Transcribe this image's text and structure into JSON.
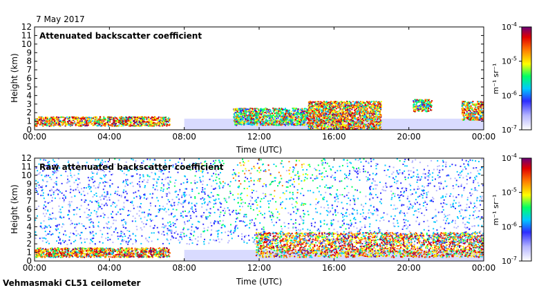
{
  "figure": {
    "date": "7 May 2017",
    "instrument_label": "Vehmasmaki CL51 ceilometer"
  },
  "chart_data": [
    {
      "type": "heatmap",
      "title": "Attenuated backscatter coefficient",
      "xlabel": "Time (UTC)",
      "ylabel": "Height (km)",
      "xlim": [
        0,
        24
      ],
      "ylim": [
        0,
        12
      ],
      "x_ticks": [
        "00:00",
        "04:00",
        "08:00",
        "12:00",
        "16:00",
        "20:00",
        "00:00"
      ],
      "y_ticks": [
        "0",
        "1",
        "2",
        "3",
        "4",
        "5",
        "6",
        "7",
        "8",
        "9",
        "10",
        "11",
        "12"
      ],
      "colorbar": {
        "unit": "m⁻¹ sr⁻¹",
        "scale": "log",
        "range": [
          1e-07,
          0.0001
        ],
        "tick_labels": [
          {
            "base": "10",
            "exp": "-4"
          },
          {
            "base": "10",
            "exp": "-5"
          },
          {
            "base": "10",
            "exp": "-6"
          },
          {
            "base": "10",
            "exp": "-7"
          }
        ]
      },
      "features": [
        {
          "name": "boundary layer aerosol",
          "time": [
            0,
            7.2
          ],
          "height_km": [
            0.5,
            1.6
          ],
          "level": "high"
        },
        {
          "name": "scattered low cloud",
          "time": [
            10.6,
            14.6
          ],
          "height_km": [
            0.6,
            2.6
          ],
          "level": "mid"
        },
        {
          "name": "cloud",
          "time": [
            14.6,
            18.5
          ],
          "height_km": [
            0,
            3.4
          ],
          "level": "high"
        },
        {
          "name": "cloud",
          "time": [
            20.2,
            21.2
          ],
          "height_km": [
            2.2,
            3.6
          ],
          "level": "mid"
        },
        {
          "name": "cloud",
          "time": [
            22.8,
            24
          ],
          "height_km": [
            1.2,
            3.4
          ],
          "level": "high"
        }
      ]
    },
    {
      "type": "heatmap",
      "title": "Raw attenuated backscatter coefficient",
      "xlabel": "Time (UTC)",
      "ylabel": "Height (km)",
      "xlim": [
        0,
        24
      ],
      "ylim": [
        0,
        12
      ],
      "x_ticks": [
        "00:00",
        "04:00",
        "08:00",
        "12:00",
        "16:00",
        "20:00",
        "00:00"
      ],
      "y_ticks": [
        "0",
        "1",
        "2",
        "3",
        "4",
        "5",
        "6",
        "7",
        "8",
        "9",
        "10",
        "11",
        "12"
      ],
      "colorbar": {
        "unit": "m⁻¹ sr⁻¹",
        "scale": "log",
        "range": [
          1e-07,
          0.0001
        ],
        "tick_labels": [
          {
            "base": "10",
            "exp": "-4"
          },
          {
            "base": "10",
            "exp": "-5"
          },
          {
            "base": "10",
            "exp": "-6"
          },
          {
            "base": "10",
            "exp": "-7"
          }
        ]
      },
      "features": [
        {
          "name": "boundary layer aerosol",
          "time": [
            0,
            7.2
          ],
          "height_km": [
            0.5,
            1.6
          ],
          "level": "high"
        },
        {
          "name": "cloud",
          "time": [
            11.8,
            24
          ],
          "height_km": [
            0.5,
            3.4
          ],
          "level": "high"
        },
        {
          "name": "noise field",
          "time": [
            0,
            24
          ],
          "height_km": [
            2,
            12
          ],
          "level": "noise"
        }
      ]
    }
  ]
}
